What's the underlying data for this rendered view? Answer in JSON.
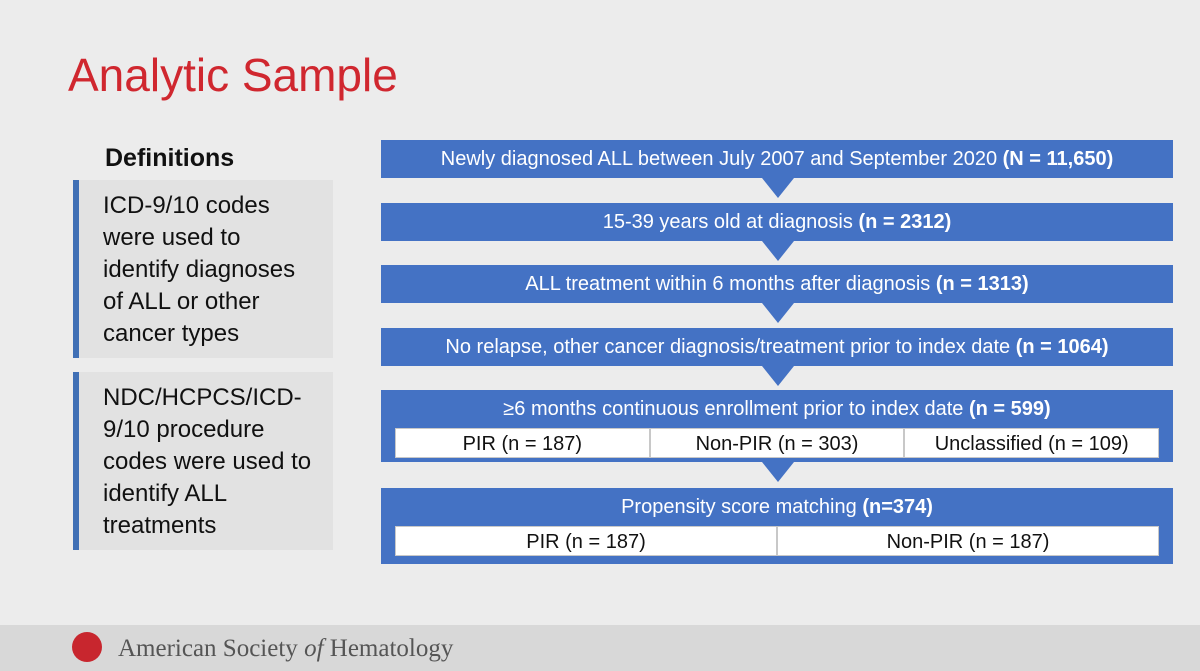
{
  "title": "Analytic Sample",
  "definitions": {
    "heading": "Definitions",
    "items": [
      "ICD-9/10 codes were used to identify diagnoses of ALL or other cancer types",
      "NDC/HCPCS/ICD-9/10 procedure codes were used to identify ALL treatments"
    ]
  },
  "flow": {
    "steps": [
      {
        "text": "Newly diagnosed ALL between July 2007 and September 2020 ",
        "count": "(N = 11,650)"
      },
      {
        "text": "15-39 years old at diagnosis ",
        "count": "(n = 2312)"
      },
      {
        "text": "ALL treatment within 6 months after diagnosis ",
        "count": "(n = 1313)"
      },
      {
        "text": "No relapse, other cancer diagnosis/treatment prior to index date ",
        "count": "(n = 1064)"
      },
      {
        "text": "≥6 months continuous enrollment prior to index date ",
        "count": "(n = 599)",
        "groups": [
          "PIR (n = 187)",
          "Non-PIR (n = 303)",
          "Unclassified (n = 109)"
        ]
      },
      {
        "text": "Propensity score matching ",
        "count": "(n=374)",
        "groups": [
          "PIR (n = 187)",
          "Non-PIR (n = 187)"
        ]
      }
    ]
  },
  "footer": {
    "org_before": "American Society ",
    "org_italic": "of",
    "org_after": " Hematology"
  }
}
